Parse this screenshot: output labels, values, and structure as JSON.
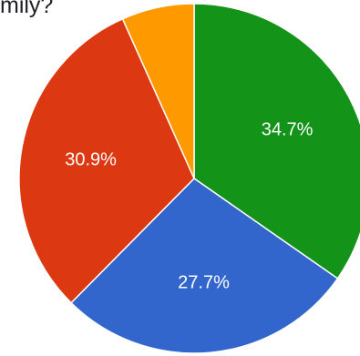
{
  "question": {
    "title_visible": "mily?"
  },
  "chart_data": {
    "type": "pie",
    "title": "",
    "start": "top, clockwise",
    "slices": [
      {
        "value": 34.7,
        "label": "34.7%",
        "color": "#149319"
      },
      {
        "value": 27.7,
        "label": "27.7%",
        "color": "#3366cc"
      },
      {
        "value": 30.9,
        "label": "30.9%",
        "color": "#dc3912"
      },
      {
        "value": 6.7,
        "label": "",
        "color": "#ff9900"
      }
    ]
  }
}
